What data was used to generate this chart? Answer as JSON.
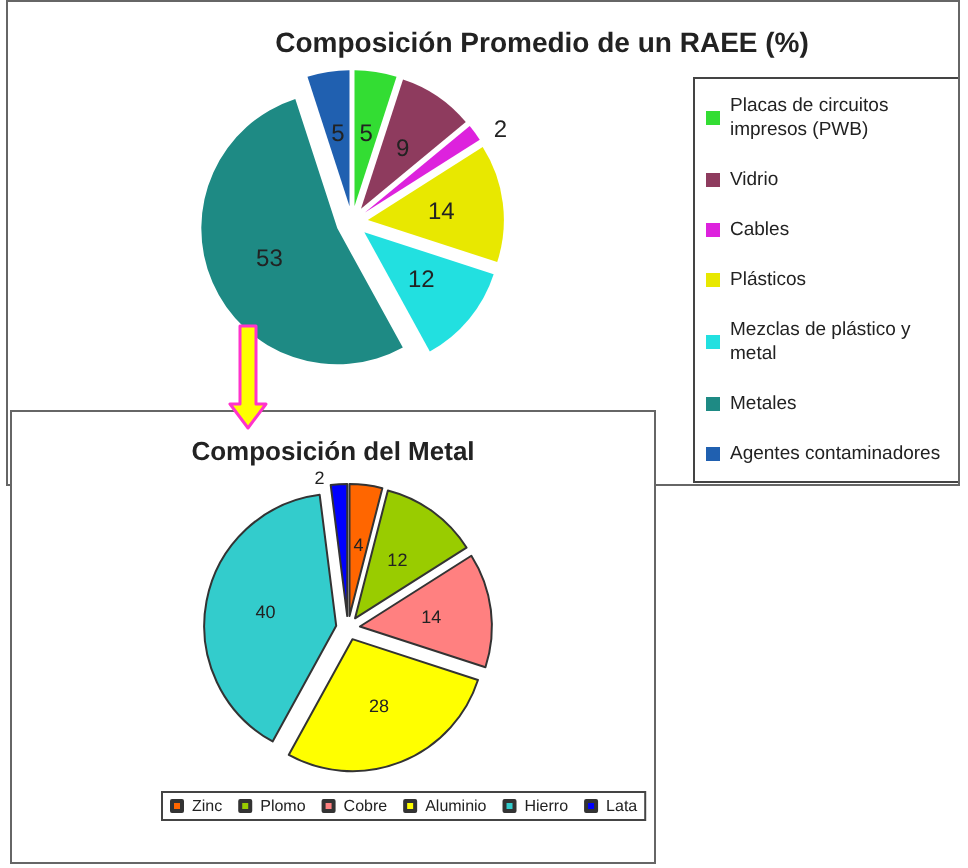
{
  "chart_data": [
    {
      "type": "pie",
      "title": "Composición Promedio de un RAEE (%)",
      "categories": [
        "Placas de circuitos impresos (PWB)",
        "Vidrio",
        "Cables",
        "Plásticos",
        "Mezclas de plástico y metal",
        "Metales",
        "Agentes contaminadores"
      ],
      "values": [
        5,
        9,
        2,
        14,
        12,
        53,
        5
      ],
      "colors": [
        "#33dd33",
        "#8e3b5e",
        "#dd22dd",
        "#e8e800",
        "#22e0e0",
        "#1e8a84",
        "#2060b0"
      ],
      "data_labels": true,
      "legend": "right"
    },
    {
      "type": "pie",
      "title": "Composición del Metal",
      "categories": [
        "Zinc",
        "Plomo",
        "Cobre",
        "Aluminio",
        "Hierro",
        "Lata"
      ],
      "values": [
        4,
        12,
        14,
        28,
        40,
        2
      ],
      "colors": [
        "#ff6600",
        "#99cc00",
        "#ff8080",
        "#ffff00",
        "#33cccc",
        "#0000ff"
      ],
      "data_labels": true,
      "legend": "bottom"
    }
  ]
}
